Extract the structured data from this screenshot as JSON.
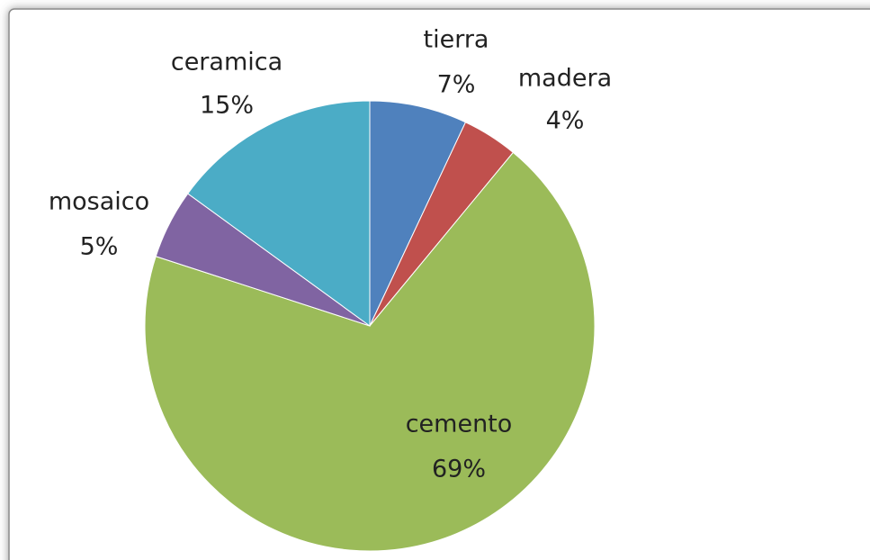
{
  "chart_data": {
    "type": "pie",
    "categories": [
      "tierra",
      "madera",
      "cemento",
      "mosaico",
      "ceramica"
    ],
    "values": [
      7,
      4,
      69,
      5,
      15
    ],
    "value_labels": [
      "7%",
      "4%",
      "69%",
      "5%",
      "15%"
    ],
    "colors": [
      "#4f81bd",
      "#c0504d",
      "#9bbb59",
      "#8064a2",
      "#4bacc6"
    ]
  }
}
